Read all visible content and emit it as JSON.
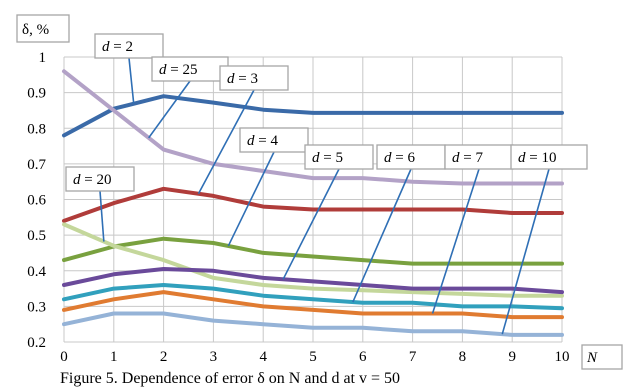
{
  "chart_data": {
    "type": "line",
    "ylabel": "δ, %",
    "xlabel": "N",
    "x": [
      0,
      1,
      2,
      3,
      4,
      5,
      6,
      7,
      8,
      9,
      10
    ],
    "xlim": [
      0,
      10
    ],
    "ylim": [
      0.2,
      1.0
    ],
    "yticks": [
      "0.2",
      "0.3",
      "0.4",
      "0.5",
      "0.6",
      "0.7",
      "0.8",
      "0.9",
      "1"
    ],
    "xticks": [
      "0",
      "1",
      "2",
      "3",
      "4",
      "5",
      "6",
      "7",
      "8",
      "9",
      "10"
    ],
    "grid": true,
    "series": [
      {
        "name": "d = 2",
        "color": "#3a6aa8",
        "values": [
          0.78,
          0.855,
          0.89,
          0.872,
          0.852,
          0.843,
          0.843,
          0.843,
          0.843,
          0.843,
          0.843
        ]
      },
      {
        "name": "d = 25",
        "color": "#b3a2c7",
        "values": [
          0.96,
          0.85,
          0.74,
          0.7,
          0.68,
          0.66,
          0.66,
          0.65,
          0.645,
          0.645,
          0.645
        ]
      },
      {
        "name": "d = 3",
        "color": "#b03c3a",
        "values": [
          0.54,
          0.59,
          0.63,
          0.61,
          0.58,
          0.572,
          0.572,
          0.572,
          0.572,
          0.562,
          0.562
        ]
      },
      {
        "name": "d = 4",
        "color": "#79a13f",
        "values": [
          0.43,
          0.468,
          0.49,
          0.478,
          0.45,
          0.44,
          0.43,
          0.42,
          0.42,
          0.42,
          0.42
        ]
      },
      {
        "name": "d = 20",
        "color": "#c4d79b",
        "values": [
          0.53,
          0.47,
          0.43,
          0.38,
          0.36,
          0.35,
          0.345,
          0.34,
          0.335,
          0.33,
          0.33
        ]
      },
      {
        "name": "d = 5",
        "color": "#6a4a9a",
        "values": [
          0.36,
          0.39,
          0.405,
          0.4,
          0.38,
          0.37,
          0.36,
          0.35,
          0.35,
          0.35,
          0.34
        ]
      },
      {
        "name": "d = 6",
        "color": "#31a0bd",
        "values": [
          0.32,
          0.35,
          0.36,
          0.35,
          0.33,
          0.32,
          0.31,
          0.31,
          0.3,
          0.3,
          0.295
        ]
      },
      {
        "name": "d = 7",
        "color": "#e07b31",
        "values": [
          0.29,
          0.32,
          0.34,
          0.32,
          0.3,
          0.29,
          0.28,
          0.28,
          0.28,
          0.27,
          0.27
        ]
      },
      {
        "name": "d = 10",
        "color": "#95b3d7",
        "values": [
          0.25,
          0.28,
          0.28,
          0.26,
          0.25,
          0.24,
          0.24,
          0.23,
          0.23,
          0.22,
          0.22
        ]
      }
    ],
    "annotations": [
      {
        "label": "d = 2",
        "series": 0,
        "at_x": 1.4
      },
      {
        "label": "d = 25",
        "series": 1,
        "at_x": 1.7
      },
      {
        "label": "d = 3",
        "series": 2,
        "at_x": 2.7
      },
      {
        "label": "d = 4",
        "series": 3,
        "at_x": 3.3
      },
      {
        "label": "d = 20",
        "series": 4,
        "at_x": 0.8
      },
      {
        "label": "d = 5",
        "series": 5,
        "at_x": 4.4
      },
      {
        "label": "d = 6",
        "series": 6,
        "at_x": 5.8
      },
      {
        "label": "d = 7",
        "series": 7,
        "at_x": 7.4
      },
      {
        "label": "d = 10",
        "series": 8,
        "at_x": 8.8
      }
    ],
    "caption": "Figure 5. Dependence of error δ on N and d at v = 50"
  }
}
